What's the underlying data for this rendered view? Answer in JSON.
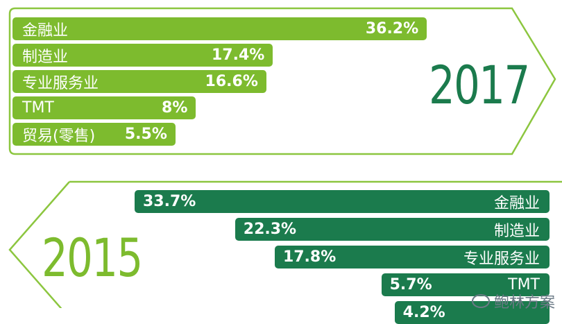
{
  "chart_data": [
    {
      "type": "bar",
      "title": "2017",
      "categories": [
        "金融业",
        "制造业",
        "专业服务业",
        "TMT",
        "贸易(零售)"
      ],
      "values": [
        36.2,
        17.4,
        16.6,
        8,
        5.5
      ],
      "value_labels": [
        "36.2%",
        "17.4%",
        "16.6%",
        "8%",
        "5.5%"
      ],
      "orientation": "horizontal",
      "color": "#7dbb2e"
    },
    {
      "type": "bar",
      "title": "2015",
      "categories": [
        "金融业",
        "制造业",
        "专业服务业",
        "TMT",
        ""
      ],
      "values": [
        33.7,
        22.3,
        17.8,
        5.7,
        4.2
      ],
      "value_labels": [
        "33.7%",
        "22.3%",
        "17.8%",
        "5.7%",
        "4.2%"
      ],
      "orientation": "horizontal",
      "color": "#1b7b4d"
    }
  ],
  "watermark": {
    "text": "鲍林方案",
    "icon": "wechat-icon"
  },
  "colors": {
    "light_green": "#7dbb2e",
    "dark_green": "#1b7b4d",
    "outline": "#8cc63f"
  }
}
